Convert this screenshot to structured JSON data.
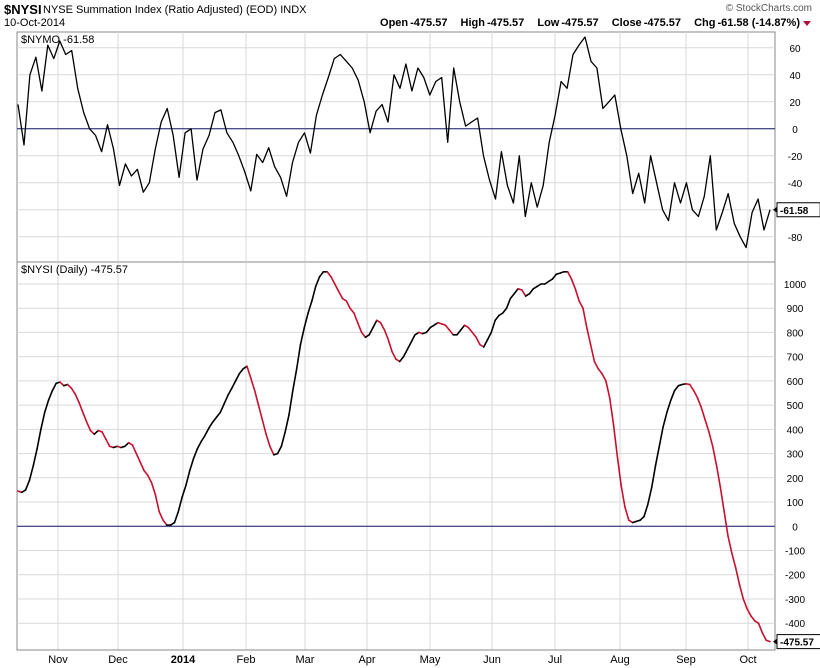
{
  "header": {
    "symbol": "$NYSI",
    "name": "NYSE Summation Index (Ratio Adjusted) (EOD)  INDX",
    "date": "10-Oct-2014",
    "watermark": "© StockCharts.com",
    "open_label": "Open",
    "open": "-475.57",
    "high_label": "High",
    "high": "-475.57",
    "low_label": "Low",
    "low": "-475.57",
    "close_label": "Close",
    "close": "-475.57",
    "chg_label": "Chg",
    "chg": "-61.58 (-14.87%)"
  },
  "chart_data": [
    {
      "type": "line",
      "title": "$NYMO -61.58",
      "ylim": [
        -95,
        68
      ],
      "yticks": [
        60,
        40,
        20,
        0,
        -20,
        -40,
        -60,
        -80
      ],
      "reference_line": 0,
      "last_value_label": "-61.58",
      "grid": true,
      "series": [
        {
          "color": "#000000",
          "values": [
            18,
            -12,
            40,
            53,
            28,
            62,
            52,
            65,
            55,
            58,
            30,
            12,
            0,
            -5,
            -17,
            3,
            -15,
            -42,
            -26,
            -35,
            -30,
            -47,
            -40,
            -15,
            5,
            15,
            -5,
            -36,
            -3,
            0,
            -38,
            -15,
            -5,
            12,
            14,
            -3,
            -10,
            -20,
            -32,
            -46,
            -19,
            -25,
            -14,
            -28,
            -36,
            -50,
            -25,
            -10,
            -3,
            -18,
            10,
            25,
            38,
            52,
            55,
            50,
            45,
            36,
            20,
            -3,
            13,
            18,
            5,
            40,
            30,
            48,
            28,
            45,
            38,
            25,
            35,
            38,
            -10,
            45,
            20,
            2,
            5,
            8,
            -20,
            -38,
            -52,
            -17,
            -42,
            -55,
            -20,
            -65,
            -40,
            -58,
            -42,
            -10,
            10,
            35,
            30,
            55,
            62,
            68,
            50,
            45,
            15,
            20,
            25,
            0,
            -20,
            -48,
            -33,
            -55,
            -20,
            -40,
            -60,
            -68,
            -40,
            -55,
            -40,
            -60,
            -65,
            -50,
            -20,
            -75,
            -62,
            -48,
            -70,
            -80,
            -88,
            -62,
            -52,
            -75,
            -60
          ],
          "values_note": "",
          "x_note": ""
        }
      ]
    },
    {
      "type": "line",
      "title": "$NYSI (Daily) -475.57",
      "ylim": [
        -490,
        1070
      ],
      "yticks": [
        1000,
        900,
        800,
        700,
        600,
        500,
        400,
        300,
        200,
        100,
        0,
        -100,
        -200,
        -300,
        -400
      ],
      "reference_line": 0,
      "last_value_label": "-475.57",
      "grid": true,
      "series": [
        {
          "name": "",
          "rising_color": "#000000",
          "falling_color": "#c8102e",
          "values": [
            145,
            140,
            150,
            190,
            250,
            320,
            400,
            470,
            520,
            560,
            590,
            595,
            580,
            585,
            570,
            545,
            510,
            470,
            430,
            395,
            380,
            395,
            390,
            360,
            330,
            325,
            330,
            325,
            330,
            345,
            335,
            300,
            265,
            230,
            210,
            180,
            130,
            60,
            25,
            5,
            5,
            15,
            60,
            120,
            170,
            230,
            280,
            320,
            350,
            375,
            405,
            430,
            450,
            470,
            505,
            540,
            570,
            600,
            630,
            650,
            660,
            610,
            560,
            500,
            440,
            380,
            330,
            295,
            300,
            330,
            390,
            460,
            560,
            650,
            750,
            820,
            880,
            930,
            990,
            1030,
            1050,
            1050,
            1030,
            1000,
            970,
            940,
            930,
            900,
            880,
            840,
            800,
            780,
            790,
            820,
            850,
            840,
            810,
            770,
            720,
            690,
            680,
            700,
            730,
            760,
            790,
            800,
            795,
            800,
            820,
            830,
            840,
            835,
            830,
            810,
            790,
            790,
            810,
            830,
            820,
            800,
            780,
            750,
            740,
            770,
            800,
            850,
            870,
            880,
            900,
            940,
            960,
            980,
            975,
            950,
            960,
            980,
            990,
            1000,
            1000,
            1010,
            1020,
            1040,
            1045,
            1050,
            1050,
            1020,
            980,
            930,
            900,
            820,
            750,
            680,
            650,
            630,
            600,
            530,
            420,
            290,
            170,
            80,
            25,
            15,
            20,
            25,
            40,
            90,
            160,
            250,
            330,
            410,
            470,
            520,
            560,
            580,
            585,
            588,
            585,
            560,
            530,
            490,
            440,
            390,
            330,
            250,
            160,
            60,
            -40,
            -110,
            -170,
            -240,
            -300,
            -340,
            -370,
            -390,
            -400,
            -440,
            -470,
            -476
          ]
        }
      ]
    }
  ],
  "x_axis": {
    "months": [
      {
        "label": "Nov",
        "bold": false
      },
      {
        "label": "Dec",
        "bold": false
      },
      {
        "label": "2014",
        "bold": true
      },
      {
        "label": "Feb",
        "bold": false
      },
      {
        "label": "Mar",
        "bold": false
      },
      {
        "label": "Apr",
        "bold": false
      },
      {
        "label": "May",
        "bold": false
      },
      {
        "label": "Jun",
        "bold": false
      },
      {
        "label": "Jul",
        "bold": false
      },
      {
        "label": "Aug",
        "bold": false
      },
      {
        "label": "Sep",
        "bold": false
      },
      {
        "label": "Oct",
        "bold": false
      }
    ]
  },
  "colors": {
    "zero_line": "#1a1a6e",
    "grid": "#d9d9d9",
    "down_line": "#c8102e",
    "up_line": "#000000",
    "arrow": "#b0103a"
  }
}
